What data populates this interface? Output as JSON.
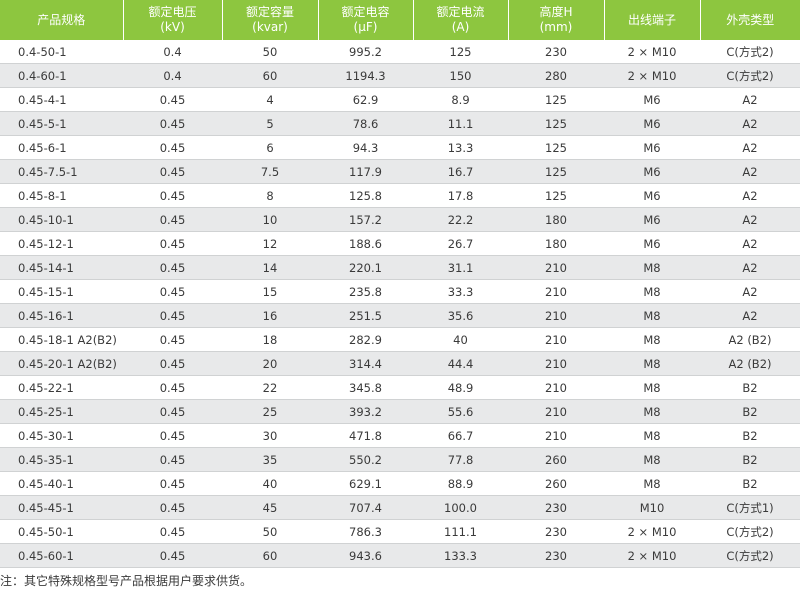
{
  "table": {
    "header": [
      [
        "产品规格"
      ],
      [
        "额定电压",
        "(kV)"
      ],
      [
        "额定容量",
        "(kvar)"
      ],
      [
        "额定电容",
        "(μF)"
      ],
      [
        "额定电流",
        "(A)"
      ],
      [
        "高度H",
        "(mm)"
      ],
      [
        "出线端子"
      ],
      [
        "外壳类型"
      ]
    ],
    "rows": [
      [
        "0.4-50-1",
        "0.4",
        "50",
        "995.2",
        "125",
        "230",
        "2 × M10",
        "C(方式2)"
      ],
      [
        "0.4-60-1",
        "0.4",
        "60",
        "1194.3",
        "150",
        "280",
        "2 × M10",
        "C(方式2)"
      ],
      [
        "0.45-4-1",
        "0.45",
        "4",
        "62.9",
        "8.9",
        "125",
        "M6",
        "A2"
      ],
      [
        "0.45-5-1",
        "0.45",
        "5",
        "78.6",
        "11.1",
        "125",
        "M6",
        "A2"
      ],
      [
        "0.45-6-1",
        "0.45",
        "6",
        "94.3",
        "13.3",
        "125",
        "M6",
        "A2"
      ],
      [
        "0.45-7.5-1",
        "0.45",
        "7.5",
        "117.9",
        "16.7",
        "125",
        "M6",
        "A2"
      ],
      [
        "0.45-8-1",
        "0.45",
        "8",
        "125.8",
        "17.8",
        "125",
        "M6",
        "A2"
      ],
      [
        "0.45-10-1",
        "0.45",
        "10",
        "157.2",
        "22.2",
        "180",
        "M6",
        "A2"
      ],
      [
        "0.45-12-1",
        "0.45",
        "12",
        "188.6",
        "26.7",
        "180",
        "M6",
        "A2"
      ],
      [
        "0.45-14-1",
        "0.45",
        "14",
        "220.1",
        "31.1",
        "210",
        "M8",
        "A2"
      ],
      [
        "0.45-15-1",
        "0.45",
        "15",
        "235.8",
        "33.3",
        "210",
        "M8",
        "A2"
      ],
      [
        "0.45-16-1",
        "0.45",
        "16",
        "251.5",
        "35.6",
        "210",
        "M8",
        "A2"
      ],
      [
        "0.45-18-1 A2(B2)",
        "0.45",
        "18",
        "282.9",
        "40",
        "210",
        "M8",
        "A2 (B2)"
      ],
      [
        "0.45-20-1 A2(B2)",
        "0.45",
        "20",
        "314.4",
        "44.4",
        "210",
        "M8",
        "A2 (B2)"
      ],
      [
        "0.45-22-1",
        "0.45",
        "22",
        "345.8",
        "48.9",
        "210",
        "M8",
        "B2"
      ],
      [
        "0.45-25-1",
        "0.45",
        "25",
        "393.2",
        "55.6",
        "210",
        "M8",
        "B2"
      ],
      [
        "0.45-30-1",
        "0.45",
        "30",
        "471.8",
        "66.7",
        "210",
        "M8",
        "B2"
      ],
      [
        "0.45-35-1",
        "0.45",
        "35",
        "550.2",
        "77.8",
        "260",
        "M8",
        "B2"
      ],
      [
        "0.45-40-1",
        "0.45",
        "40",
        "629.1",
        "88.9",
        "260",
        "M8",
        "B2"
      ],
      [
        "0.45-45-1",
        "0.45",
        "45",
        "707.4",
        "100.0",
        "230",
        "M10",
        "C(方式1)"
      ],
      [
        "0.45-50-1",
        "0.45",
        "50",
        "786.3",
        "111.1",
        "230",
        "2 × M10",
        "C(方式2)"
      ],
      [
        "0.45-60-1",
        "0.45",
        "60",
        "943.6",
        "133.3",
        "230",
        "2 × M10",
        "C(方式2)"
      ]
    ]
  },
  "note": "注：其它特殊规格型号产品根据用户要求供货。"
}
